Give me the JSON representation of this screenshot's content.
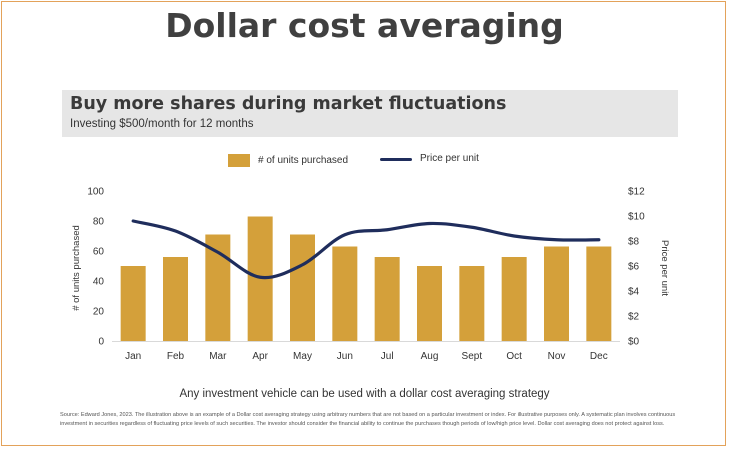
{
  "page": {
    "title": "Dollar cost averaging",
    "banner_title": "Buy more shares during market fluctuations",
    "banner_subtitle": "Investing $500/month for 12 months",
    "footer_note": "Any investment vehicle can be used with a dollar cost averaging strategy",
    "source_text": "Source: Edward Jones, 2023. The illustration above is an example of a Dollar cost averaging strategy using arbitrary numbers that are not based on a particular investment or index. For illustrative purposes only. A systematic plan involves continuous investment in securities regardless of fluctuating price levels of such securities. The investor should consider the financial ability to continue the purchases though periods of low/high price level. Dollar cost averaging does not protect against loss."
  },
  "colors": {
    "bar": "#d4a03a",
    "line": "#1f2d5c",
    "border": "#e3a25a",
    "banner": "#e6e6e6"
  },
  "chart_data": {
    "type": "bar",
    "categories": [
      "Jan",
      "Feb",
      "Mar",
      "Apr",
      "May",
      "Jun",
      "Jul",
      "Aug",
      "Sept",
      "Oct",
      "Nov",
      "Dec"
    ],
    "series": [
      {
        "name": "# of units purchased",
        "type": "bar",
        "axis": "left",
        "values": [
          50,
          56,
          71,
          83,
          71,
          63,
          56,
          50,
          50,
          56,
          63,
          63
        ]
      },
      {
        "name": "Price per unit",
        "type": "line",
        "axis": "right",
        "values": [
          9.6,
          8.8,
          7.1,
          5.1,
          6.1,
          8.5,
          8.9,
          9.4,
          9.1,
          8.4,
          8.1,
          8.1
        ]
      }
    ],
    "ylabel": "# of units purchased",
    "ylim": [
      0,
      100
    ],
    "yticks": [
      0,
      20,
      40,
      60,
      80,
      100
    ],
    "y2label": "Price per unit",
    "y2lim": [
      0,
      12
    ],
    "y2ticks": [
      "$0",
      "$2",
      "$4",
      "$6",
      "$8",
      "$10",
      "$12"
    ],
    "legend_position": "top",
    "grid": false
  }
}
